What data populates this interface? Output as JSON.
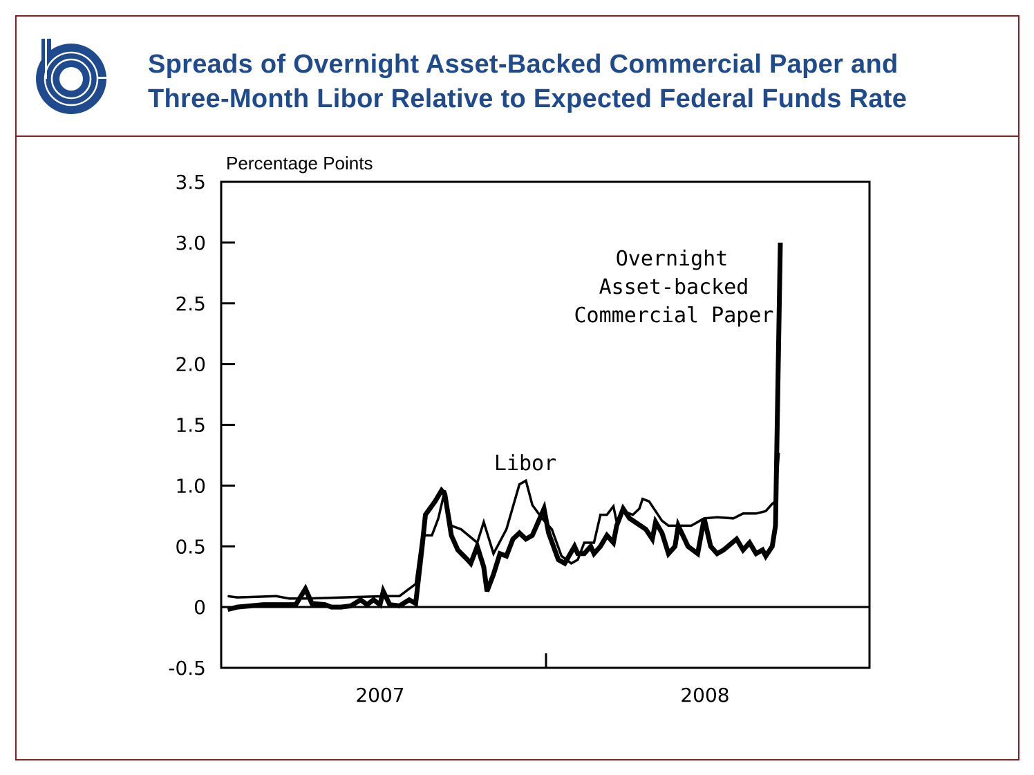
{
  "header": {
    "title_line1": "Spreads of Overnight Asset-Backed Commercial Paper and",
    "title_line2": "Three-Month Libor Relative to Expected Federal Funds Rate",
    "brand_color": "#1f4b8e",
    "border_color": "#8b1f1f"
  },
  "chart_data": {
    "type": "line",
    "title": "Spreads of Overnight Asset-Backed Commercial Paper and Three-Month Libor Relative to Expected Federal Funds Rate",
    "ylabel": "Percentage Points",
    "xlabel": "",
    "ylim": [
      -0.5,
      3.5
    ],
    "xlim": [
      2007.0,
      2009.0
    ],
    "yticks": [
      "3.5",
      "3.0",
      "2.5",
      "2.0",
      "1.5",
      "1.0",
      "0.5",
      "0",
      "-0.5"
    ],
    "ytick_values": [
      3.5,
      3.0,
      2.5,
      2.0,
      1.5,
      1.0,
      0.5,
      0,
      -0.5
    ],
    "xtick_labels": [
      "2007",
      "2008"
    ],
    "grid": false,
    "annotations": {
      "libor": "Libor",
      "abcp_line1": "Overnight",
      "abcp_line2": "Asset-backed",
      "abcp_line3": "Commercial Paper"
    },
    "series": [
      {
        "name": "Libor",
        "style": "thin",
        "x": [
          2007.02,
          2007.05,
          2007.17,
          2007.21,
          2007.26,
          2007.38,
          2007.51,
          2007.55,
          2007.6,
          2007.62,
          2007.65,
          2007.67,
          2007.69,
          2007.71,
          2007.74,
          2007.79,
          2007.81,
          2007.84,
          2007.88,
          2007.92,
          2007.94,
          2007.96,
          2007.99,
          2008.02,
          2008.05,
          2008.08,
          2008.1,
          2008.12,
          2008.15,
          2008.17,
          2008.19,
          2008.21,
          2008.22,
          2008.24,
          2008.27,
          2008.29,
          2008.3,
          2008.32,
          2008.36,
          2008.38,
          2008.4,
          2008.45,
          2008.49,
          2008.53,
          2008.58,
          2008.61,
          2008.65,
          2008.68,
          2008.7,
          2008.71,
          2008.72
        ],
        "y": [
          0.09,
          0.08,
          0.09,
          0.07,
          0.07,
          0.08,
          0.09,
          0.09,
          0.19,
          0.59,
          0.59,
          0.73,
          0.96,
          0.67,
          0.64,
          0.53,
          0.7,
          0.44,
          0.64,
          1.01,
          1.04,
          0.84,
          0.73,
          0.64,
          0.42,
          0.36,
          0.39,
          0.53,
          0.53,
          0.76,
          0.76,
          0.83,
          0.7,
          0.79,
          0.76,
          0.81,
          0.89,
          0.87,
          0.71,
          0.67,
          0.67,
          0.67,
          0.73,
          0.74,
          0.73,
          0.77,
          0.77,
          0.79,
          0.85,
          0.87,
          1.27
        ]
      },
      {
        "name": "Overnight Asset-backed Commercial Paper",
        "style": "thick",
        "x": [
          2007.02,
          2007.05,
          2007.09,
          2007.13,
          2007.23,
          2007.26,
          2007.28,
          2007.32,
          2007.34,
          2007.37,
          2007.4,
          2007.43,
          2007.45,
          2007.47,
          2007.49,
          2007.5,
          2007.52,
          2007.55,
          2007.58,
          2007.6,
          2007.62,
          2007.63,
          2007.66,
          2007.68,
          2007.69,
          2007.71,
          2007.73,
          2007.76,
          2007.77,
          2007.79,
          2007.81,
          2007.82,
          2007.84,
          2007.86,
          2007.88,
          2007.9,
          2007.92,
          2007.94,
          2007.96,
          2007.996,
          2008.01,
          2008.04,
          2008.06,
          2008.09,
          2008.1,
          2008.12,
          2008.14,
          2008.15,
          2008.17,
          2008.19,
          2008.21,
          2008.22,
          2008.24,
          2008.26,
          2008.31,
          2008.33,
          2008.34,
          2008.36,
          2008.38,
          2008.4,
          2008.41,
          2008.44,
          2008.47,
          2008.49,
          2008.51,
          2008.53,
          2008.55,
          2008.59,
          2008.61,
          2008.63,
          2008.65,
          2008.67,
          2008.68,
          2008.7,
          2008.71,
          2008.725
        ],
        "y": [
          -0.02,
          0.0,
          0.01,
          0.02,
          0.02,
          0.15,
          0.03,
          0.02,
          0.0,
          0.0,
          0.01,
          0.06,
          0.02,
          0.06,
          0.02,
          0.13,
          0.02,
          0.01,
          0.06,
          0.03,
          0.5,
          0.76,
          0.87,
          0.96,
          0.93,
          0.59,
          0.47,
          0.39,
          0.36,
          0.5,
          0.33,
          0.13,
          0.27,
          0.44,
          0.42,
          0.56,
          0.61,
          0.56,
          0.59,
          0.81,
          0.61,
          0.39,
          0.36,
          0.5,
          0.44,
          0.44,
          0.5,
          0.44,
          0.5,
          0.59,
          0.53,
          0.67,
          0.81,
          0.73,
          0.64,
          0.56,
          0.7,
          0.61,
          0.44,
          0.5,
          0.67,
          0.5,
          0.44,
          0.73,
          0.5,
          0.44,
          0.47,
          0.56,
          0.47,
          0.53,
          0.44,
          0.47,
          0.42,
          0.5,
          0.67,
          3.0
        ]
      }
    ]
  }
}
